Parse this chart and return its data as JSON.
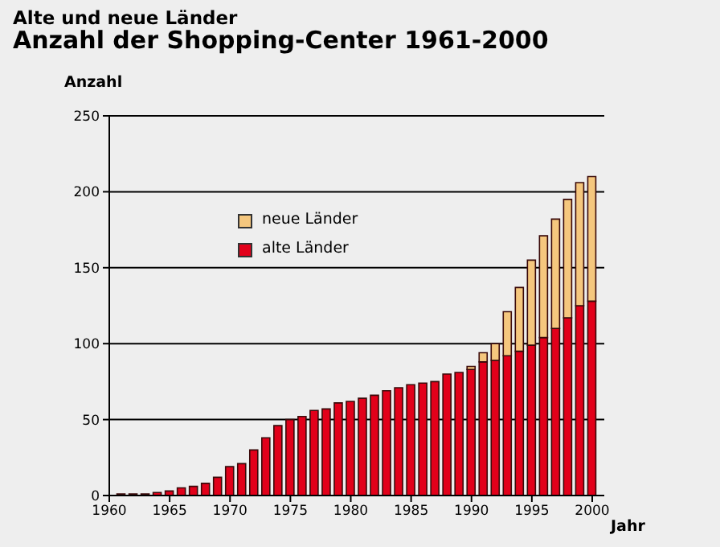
{
  "chart_data": {
    "type": "bar",
    "subtitle": "Alte und neue Länder",
    "title": "Anzahl der Shopping-Center 1961-2000",
    "ylabel": "Anzahl",
    "xlabel": "Jahr",
    "x": [
      1961,
      1962,
      1963,
      1964,
      1965,
      1966,
      1967,
      1968,
      1969,
      1970,
      1971,
      1972,
      1973,
      1974,
      1975,
      1976,
      1977,
      1978,
      1979,
      1980,
      1981,
      1982,
      1983,
      1984,
      1985,
      1986,
      1987,
      1988,
      1989,
      1990,
      1991,
      1992,
      1993,
      1994,
      1995,
      1996,
      1997,
      1998,
      1999,
      2000
    ],
    "stacked": true,
    "series": [
      {
        "name": "alte Länder",
        "color": "#e2001a",
        "values": [
          1,
          1,
          1,
          2,
          3,
          5,
          6,
          8,
          12,
          19,
          21,
          30,
          38,
          46,
          50,
          52,
          56,
          57,
          61,
          62,
          64,
          66,
          69,
          71,
          73,
          74,
          75,
          80,
          81,
          83,
          88,
          89,
          92,
          95,
          99,
          104,
          110,
          117,
          125,
          128
        ]
      },
      {
        "name": "neue Länder",
        "color": "#f5c77e",
        "values": [
          null,
          null,
          null,
          null,
          null,
          null,
          null,
          null,
          null,
          null,
          null,
          null,
          null,
          null,
          null,
          null,
          null,
          null,
          null,
          null,
          null,
          null,
          null,
          null,
          null,
          null,
          null,
          null,
          null,
          2,
          6,
          11,
          29,
          42,
          56,
          67,
          72,
          78,
          81,
          82
        ]
      }
    ],
    "xlim": [
      1960,
      2001
    ],
    "xticks": [
      1960,
      1965,
      1970,
      1975,
      1980,
      1985,
      1990,
      1995,
      2000
    ],
    "ylim": [
      0,
      250
    ],
    "yticks": [
      0,
      50,
      100,
      150,
      200,
      250
    ],
    "grid": "y",
    "legend": "top left"
  }
}
